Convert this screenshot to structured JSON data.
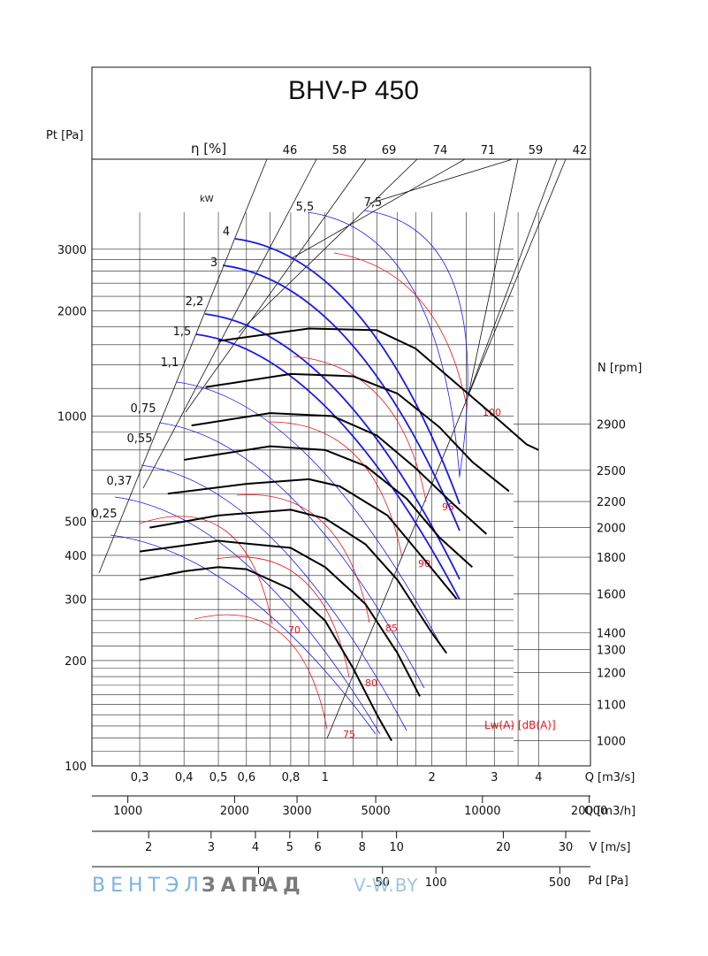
{
  "chart_data": {
    "type": "line",
    "title": "BHV-P 450",
    "ylabel": "Pt [Pa]",
    "xlabel": "Q [m3/s]",
    "y_scale": "log",
    "ylim": [
      100,
      4300
    ],
    "xlim": [
      0.22,
      5.6
    ],
    "y_ticks": [
      "100",
      "200",
      "300",
      "400",
      "500",
      "1000",
      "2000",
      "3000"
    ],
    "eff_label": "η [%]",
    "eff_values": [
      "46",
      "58",
      "69",
      "74",
      "71",
      "59",
      "42"
    ],
    "kw_header": "kW",
    "power_labels": [
      "0,25",
      "0,37",
      "0,55",
      "0,75",
      "1,1",
      "1,5",
      "2,2",
      "3",
      "4",
      "5,5",
      "7,5"
    ],
    "rpm_label": "N [rpm]",
    "rpm_ticks": [
      "1000",
      "1100",
      "1200",
      "1300",
      "1400",
      "1600",
      "1800",
      "2000",
      "2200",
      "2500",
      "2900"
    ],
    "noise_label": "Lw(A) [dB(A)]",
    "noise_levels": [
      "70",
      "75",
      "80",
      "85",
      "90",
      "95",
      "100"
    ],
    "axes": [
      {
        "label": "Q [m3/s]",
        "ticks": [
          "0,3",
          "0,4",
          "0,5",
          "0,6",
          "0,8",
          "1",
          "2",
          "3",
          "4"
        ]
      },
      {
        "label": "Q [m3/h]",
        "ticks": [
          "1000",
          "2000",
          "3000",
          "5000",
          "10000",
          "20000"
        ]
      },
      {
        "label": "V [m/s]",
        "ticks": [
          "2",
          "3",
          "4",
          "5",
          "6",
          "8",
          "10",
          "20",
          "30"
        ]
      },
      {
        "label": "Pd [Pa]",
        "ticks": [
          "10",
          "50",
          "100",
          "500"
        ]
      }
    ],
    "series": [
      {
        "rpm": 1000,
        "x": [
          0.3,
          0.4,
          0.5,
          0.6,
          0.8,
          1.0,
          1.2,
          1.4,
          1.54
        ],
        "y": [
          340,
          360,
          370,
          365,
          320,
          260,
          190,
          140,
          118
        ]
      },
      {
        "rpm": 1300,
        "x": [
          0.3,
          0.5,
          0.8,
          1.0,
          1.3,
          1.6,
          1.85
        ],
        "y": [
          410,
          440,
          420,
          370,
          290,
          210,
          158
        ]
      },
      {
        "rpm": 1600,
        "x": [
          0.32,
          0.5,
          0.8,
          1.0,
          1.3,
          1.6,
          2.0,
          2.2
        ],
        "y": [
          480,
          520,
          540,
          510,
          430,
          340,
          240,
          210
        ]
      },
      {
        "rpm": 1800,
        "x": [
          0.36,
          0.6,
          0.9,
          1.1,
          1.5,
          1.9,
          2.35
        ],
        "y": [
          600,
          640,
          660,
          630,
          520,
          390,
          300
        ]
      },
      {
        "rpm": 2000,
        "x": [
          0.4,
          0.7,
          1.0,
          1.3,
          1.7,
          2.1,
          2.6
        ],
        "y": [
          750,
          820,
          800,
          720,
          580,
          450,
          370
        ]
      },
      {
        "rpm": 2200,
        "x": [
          0.42,
          0.7,
          1.05,
          1.4,
          1.8,
          2.3,
          2.85
        ],
        "y": [
          940,
          1020,
          1000,
          880,
          710,
          560,
          460
        ]
      },
      {
        "rpm": 2500,
        "x": [
          0.46,
          0.8,
          1.2,
          1.6,
          2.1,
          2.6,
          3.3
        ],
        "y": [
          1210,
          1320,
          1300,
          1160,
          930,
          740,
          610
        ]
      },
      {
        "rpm": 2900,
        "x": [
          0.5,
          0.9,
          1.4,
          1.8,
          2.3,
          3.0,
          3.7,
          4.0
        ],
        "y": [
          1640,
          1780,
          1760,
          1560,
          1260,
          1000,
          830,
          800
        ]
      }
    ]
  },
  "watermark": {
    "part1": "ВЕНТЭЛ",
    "part2": "ЗАПАД",
    "part3": "V-W.BY"
  },
  "colors": {
    "curve": "#000000",
    "power": "#1a1ae6",
    "noise": "#e8141c",
    "watermark1": "#7ab4dc",
    "watermark2": "#8a8a8a"
  }
}
